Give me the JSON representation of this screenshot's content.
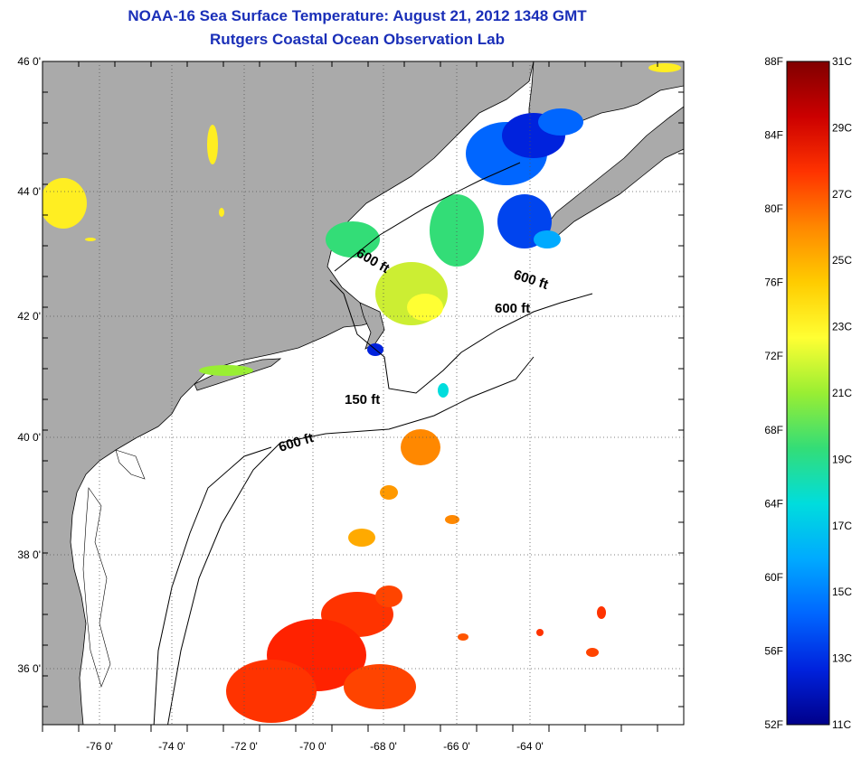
{
  "header": {
    "title": "NOAA-16 Sea Surface Temperature:  August 21, 2012 1348 GMT",
    "subtitle": "Rutgers Coastal Ocean Observation Lab"
  },
  "map": {
    "lat_ticks": [
      "46 0'",
      "44 0'",
      "42 0'",
      "40 0'",
      "38 0'",
      "36 0'"
    ],
    "lon_ticks": [
      "-76 0'",
      "-74 0'",
      "-72 0'",
      "-70 0'",
      "-68 0'",
      "-66 0'",
      "-64 0'"
    ],
    "isobaths": [
      "600 ft",
      "600 ft",
      "600 ft",
      "150 ft",
      "600 ft"
    ],
    "colors": {
      "land": "#aaaaaa",
      "ocean": "#ffffff",
      "title": "#1a2fb8"
    }
  },
  "colorbar": {
    "fahrenheit": [
      "88F",
      "84F",
      "80F",
      "76F",
      "72F",
      "68F",
      "64F",
      "60F",
      "56F",
      "52F"
    ],
    "celsius": [
      "31C",
      "29C",
      "27C",
      "25C",
      "23C",
      "21C",
      "19C",
      "17C",
      "15C",
      "13C",
      "11C"
    ],
    "gradient": [
      "#800000",
      "#cc0000",
      "#ff3300",
      "#ff8800",
      "#ffcc00",
      "#ffff33",
      "#99ee33",
      "#33dd77",
      "#00dddd",
      "#00aaff",
      "#0066ff",
      "#0022dd",
      "#00008a"
    ]
  }
}
